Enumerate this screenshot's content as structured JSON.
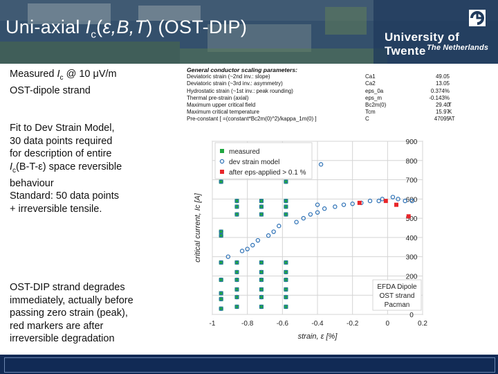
{
  "slide": {
    "title_prefix": "Uni-axial ",
    "title_italic": "I",
    "title_sub": "c",
    "title_open": "(",
    "title_eps": "ε",
    "title_vars": ",B,T",
    "title_close": ") (OST-DIP)",
    "university": "University of Twente",
    "country": "The Netherlands",
    "colors": {
      "header_bg": "#2d4a6a",
      "footer_bg": "#112a55",
      "measured": "#1fa640",
      "model": "#2a6fb5",
      "after_degradation": "#e8262a"
    }
  },
  "notes": {
    "block1_line1_a": "Measured ",
    "block1_line1_i": "I",
    "block1_line1_sub": "c",
    "block1_line1_b": " @ 10 μV/m",
    "block1_line2": "OST-dipole strand",
    "block2_lines": [
      "Fit to Dev Strain Model,",
      "30 data points required",
      "for description of entire"
    ],
    "block2_line4_i": "I",
    "block2_line4_sub": "c",
    "block2_line4_b": "(B-T-ε) space reversible",
    "block2_lines_tail": [
      "behaviour",
      "Standard: 50 data points",
      "+ irreversible tensile."
    ],
    "block3_lines": [
      "OST-DIP strand degrades",
      "immediately, actually before",
      "passing zero strain (peak),",
      "red markers are after",
      "irreversible degradation"
    ]
  },
  "parameters": {
    "heading": "General conductor scaling parameters:",
    "rows": [
      {
        "name": "Deviatoric strain (~2nd inv.: slope)",
        "symbol": "Ca1",
        "value": "49.05",
        "unit": ""
      },
      {
        "name": "Deviatoric strain (~3rd inv.: asymmetry)",
        "symbol": "Ca2",
        "value": "13.05",
        "unit": ""
      },
      {
        "name": "Hydrostatic strain (~1st inv.: peak rounding)",
        "symbol": "eps_0a",
        "value": "0.374%",
        "unit": ""
      },
      {
        "name": "Thermal pre-strain (axial)",
        "symbol": "eps_m",
        "value": "-0.143%",
        "unit": ""
      },
      {
        "name": "Maximum upper critical field",
        "symbol": "Bc2m(0)",
        "value": "29.40",
        "unit": "T"
      },
      {
        "name": "Maximum critical temperature",
        "symbol": "Tcm",
        "value": "15.97",
        "unit": "K"
      },
      {
        "name": "Pre-constant [ =(constant*Bc2m(0)^2)/kappa_1m(0) ]",
        "symbol": "C",
        "value": "47095",
        "unit": "AT"
      }
    ]
  },
  "chart_data": {
    "type": "scatter",
    "xlabel": "strain, ε [%]",
    "ylabel": "critical current, Ic [A]",
    "xlim": [
      -1,
      0.2
    ],
    "ylim": [
      0,
      900
    ],
    "x_ticks": [
      "-1",
      "-0.8",
      "-0.6",
      "-0.4",
      "-0.2",
      "0",
      "0.2"
    ],
    "y_ticks": [
      "0",
      "100",
      "200",
      "300",
      "400",
      "500",
      "600",
      "700",
      "800",
      "900"
    ],
    "grid": true,
    "legend_position": "top-left",
    "annotation": [
      "EFDA Dipole",
      "OST  strand",
      "Pacman"
    ],
    "series": [
      {
        "name": "measured",
        "marker": "square",
        "points": [
          [
            -0.95,
            690
          ],
          [
            -0.95,
            430
          ],
          [
            -0.95,
            410
          ],
          [
            -0.95,
            270
          ],
          [
            -0.95,
            180
          ],
          [
            -0.95,
            110
          ],
          [
            -0.95,
            80
          ],
          [
            -0.95,
            30
          ],
          [
            -0.86,
            590
          ],
          [
            -0.86,
            560
          ],
          [
            -0.86,
            520
          ],
          [
            -0.86,
            270
          ],
          [
            -0.86,
            220
          ],
          [
            -0.86,
            180
          ],
          [
            -0.86,
            130
          ],
          [
            -0.86,
            90
          ],
          [
            -0.86,
            40
          ],
          [
            -0.72,
            590
          ],
          [
            -0.72,
            560
          ],
          [
            -0.72,
            520
          ],
          [
            -0.72,
            270
          ],
          [
            -0.72,
            220
          ],
          [
            -0.72,
            180
          ],
          [
            -0.72,
            130
          ],
          [
            -0.72,
            90
          ],
          [
            -0.72,
            40
          ],
          [
            -0.58,
            690
          ],
          [
            -0.58,
            590
          ],
          [
            -0.58,
            560
          ],
          [
            -0.58,
            520
          ],
          [
            -0.58,
            270
          ],
          [
            -0.58,
            220
          ],
          [
            -0.58,
            180
          ],
          [
            -0.58,
            130
          ],
          [
            -0.58,
            90
          ],
          [
            -0.58,
            40
          ]
        ]
      },
      {
        "name": "dev strain model",
        "marker": "circle",
        "points": [
          [
            -0.95,
            690
          ],
          [
            -0.95,
            430
          ],
          [
            -0.95,
            410
          ],
          [
            -0.95,
            270
          ],
          [
            -0.95,
            180
          ],
          [
            -0.95,
            110
          ],
          [
            -0.95,
            80
          ],
          [
            -0.95,
            30
          ],
          [
            -0.91,
            300
          ],
          [
            -0.86,
            590
          ],
          [
            -0.86,
            560
          ],
          [
            -0.86,
            520
          ],
          [
            -0.86,
            270
          ],
          [
            -0.86,
            220
          ],
          [
            -0.86,
            180
          ],
          [
            -0.86,
            130
          ],
          [
            -0.86,
            90
          ],
          [
            -0.86,
            40
          ],
          [
            -0.83,
            330
          ],
          [
            -0.8,
            340
          ],
          [
            -0.77,
            360
          ],
          [
            -0.74,
            385
          ],
          [
            -0.72,
            590
          ],
          [
            -0.72,
            560
          ],
          [
            -0.72,
            520
          ],
          [
            -0.72,
            270
          ],
          [
            -0.72,
            220
          ],
          [
            -0.72,
            180
          ],
          [
            -0.72,
            130
          ],
          [
            -0.72,
            90
          ],
          [
            -0.72,
            40
          ],
          [
            -0.68,
            410
          ],
          [
            -0.65,
            430
          ],
          [
            -0.62,
            460
          ],
          [
            -0.58,
            690
          ],
          [
            -0.58,
            590
          ],
          [
            -0.58,
            560
          ],
          [
            -0.58,
            520
          ],
          [
            -0.58,
            270
          ],
          [
            -0.58,
            220
          ],
          [
            -0.58,
            180
          ],
          [
            -0.58,
            130
          ],
          [
            -0.58,
            90
          ],
          [
            -0.58,
            40
          ],
          [
            -0.52,
            480
          ],
          [
            -0.48,
            500
          ],
          [
            -0.44,
            520
          ],
          [
            -0.4,
            530
          ],
          [
            -0.4,
            570
          ],
          [
            -0.38,
            780
          ],
          [
            -0.36,
            550
          ],
          [
            -0.3,
            560
          ],
          [
            -0.25,
            570
          ],
          [
            -0.2,
            575
          ],
          [
            -0.15,
            580
          ],
          [
            -0.1,
            590
          ],
          [
            -0.05,
            590
          ],
          [
            -0.03,
            600
          ],
          [
            0.03,
            610
          ],
          [
            0.06,
            600
          ],
          [
            0.1,
            590
          ],
          [
            0.14,
            590
          ]
        ]
      },
      {
        "name": "after eps-applied > 0.1 %",
        "marker": "square",
        "points": [
          [
            -0.16,
            580
          ],
          [
            -0.01,
            590
          ],
          [
            0.05,
            570
          ],
          [
            0.12,
            510
          ]
        ]
      }
    ]
  }
}
